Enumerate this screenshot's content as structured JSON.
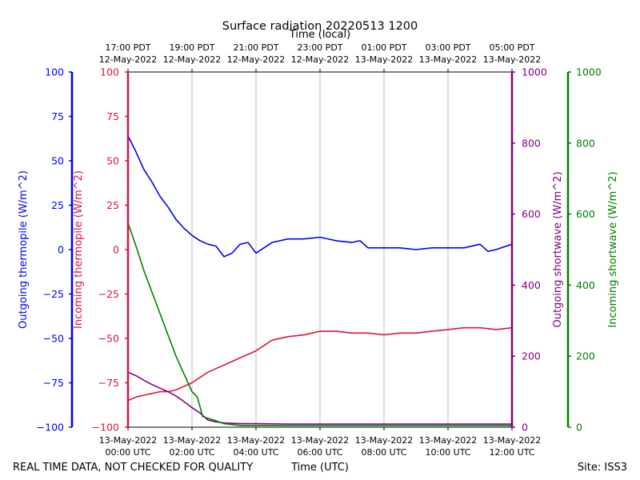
{
  "chart_data": {
    "type": "line",
    "title": "Surface radiation 20220513 1200",
    "top_axis_label": "Time (local)",
    "top_ticks": [
      {
        "line1": "17:00 PDT",
        "line2": "12-May-2022"
      },
      {
        "line1": "19:00 PDT",
        "line2": "12-May-2022"
      },
      {
        "line1": "21:00 PDT",
        "line2": "12-May-2022"
      },
      {
        "line1": "23:00 PDT",
        "line2": "12-May-2022"
      },
      {
        "line1": "01:00 PDT",
        "line2": "13-May-2022"
      },
      {
        "line1": "03:00 PDT",
        "line2": "13-May-2022"
      },
      {
        "line1": "05:00 PDT",
        "line2": "13-May-2022"
      }
    ],
    "xlabel": "Time (UTC)",
    "xlim": [
      "13-May-2022 00:00 UTC",
      "13-May-2022 12:00 UTC"
    ],
    "bottom_ticks": [
      {
        "line1": "13-May-2022",
        "line2": "00:00 UTC"
      },
      {
        "line1": "13-May-2022",
        "line2": "02:00 UTC"
      },
      {
        "line1": "13-May-2022",
        "line2": "04:00 UTC"
      },
      {
        "line1": "13-May-2022",
        "line2": "06:00 UTC"
      },
      {
        "line1": "13-May-2022",
        "line2": "08:00 UTC"
      },
      {
        "line1": "13-May-2022",
        "line2": "10:00 UTC"
      },
      {
        "line1": "13-May-2022",
        "line2": "12:00 UTC"
      }
    ],
    "grid": "vertical",
    "axes": {
      "outgoing_thermopile": {
        "label": "Outgoing thermopile (W/m^2)",
        "color": "#0000ff",
        "ylim": [
          -100,
          100
        ],
        "ticks": [
          "100",
          "75",
          "50",
          "25",
          "0",
          "−25",
          "−50",
          "−75",
          "−100"
        ]
      },
      "incoming_thermopile": {
        "label": "Incoming thermopile (W/m^2)",
        "color": "#dc143c",
        "ylim": [
          -100,
          100
        ],
        "ticks": [
          "100",
          "75",
          "50",
          "25",
          "0",
          "−25",
          "−50",
          "−75",
          "−100"
        ]
      },
      "outgoing_shortwave": {
        "label": "Outgoing shortwave (W/m^2)",
        "color": "#800080",
        "ylim": [
          0,
          1000
        ],
        "ticks": [
          "1000",
          "800",
          "600",
          "400",
          "200",
          "0"
        ]
      },
      "incoming_shortwave": {
        "label": "Incoming shortwave (W/m^2)",
        "color": "#008000",
        "ylim": [
          0,
          1000
        ],
        "ticks": [
          "1000",
          "800",
          "600",
          "400",
          "200",
          "0"
        ]
      }
    },
    "series": [
      {
        "name": "Outgoing thermopile",
        "axis": "outgoing_thermopile",
        "color": "#0000ff",
        "x": [
          "00:00",
          "00:15",
          "00:30",
          "00:45",
          "01:00",
          "01:15",
          "01:30",
          "01:45",
          "02:00",
          "02:15",
          "02:30",
          "02:45",
          "03:00",
          "03:15",
          "03:30",
          "03:45",
          "04:00",
          "04:15",
          "04:30",
          "05:00",
          "05:30",
          "06:00",
          "06:30",
          "07:00",
          "07:15",
          "07:30",
          "08:00",
          "08:30",
          "09:00",
          "09:30",
          "10:00",
          "10:30",
          "11:00",
          "11:15",
          "11:30",
          "12:00"
        ],
        "y": [
          64,
          55,
          45,
          38,
          30,
          24,
          17,
          12,
          8,
          5,
          3,
          2,
          -4,
          -2,
          3,
          4,
          -2,
          1,
          4,
          6,
          6,
          7,
          5,
          4,
          5,
          1,
          1,
          1,
          0,
          1,
          1,
          1,
          3,
          -1,
          0,
          3
        ]
      },
      {
        "name": "Incoming thermopile",
        "axis": "incoming_thermopile",
        "color": "#dc143c",
        "x": [
          "00:00",
          "00:15",
          "00:30",
          "00:45",
          "01:00",
          "01:15",
          "01:30",
          "01:45",
          "02:00",
          "02:15",
          "02:30",
          "02:45",
          "03:00",
          "03:15",
          "03:30",
          "03:45",
          "04:00",
          "04:15",
          "04:30",
          "05:00",
          "05:30",
          "06:00",
          "06:30",
          "07:00",
          "07:30",
          "08:00",
          "08:30",
          "09:00",
          "09:30",
          "10:00",
          "10:30",
          "11:00",
          "11:30",
          "12:00"
        ],
        "y": [
          -85,
          -83,
          -82,
          -81,
          -80,
          -80,
          -79,
          -77,
          -75,
          -72,
          -69,
          -67,
          -65,
          -63,
          -61,
          -59,
          -57,
          -54,
          -51,
          -49,
          -48,
          -46,
          -46,
          -47,
          -47,
          -48,
          -47,
          -47,
          -46,
          -45,
          -44,
          -44,
          -45,
          -44
        ]
      },
      {
        "name": "Outgoing shortwave",
        "axis": "outgoing_shortwave",
        "color": "#800080",
        "x": [
          "00:00",
          "00:15",
          "00:30",
          "00:45",
          "01:00",
          "01:15",
          "01:30",
          "01:45",
          "02:00",
          "02:15",
          "02:30",
          "02:45",
          "03:00",
          "03:30",
          "04:00",
          "05:00",
          "06:00",
          "07:00",
          "08:00",
          "09:00",
          "10:00",
          "11:00",
          "12:00"
        ],
        "y": [
          155,
          145,
          132,
          120,
          110,
          100,
          88,
          72,
          55,
          40,
          20,
          15,
          12,
          10,
          10,
          9,
          9,
          9,
          9,
          9,
          9,
          9,
          9
        ]
      },
      {
        "name": "Incoming shortwave",
        "axis": "incoming_shortwave",
        "color": "#008000",
        "x": [
          "00:00",
          "00:15",
          "00:30",
          "00:45",
          "01:00",
          "01:15",
          "01:30",
          "01:45",
          "02:00",
          "02:10",
          "02:20",
          "02:30",
          "02:45",
          "03:00",
          "03:30",
          "04:00",
          "05:00",
          "06:00",
          "07:00",
          "08:00",
          "09:00",
          "10:00",
          "11:00",
          "12:00"
        ],
        "y": [
          575,
          510,
          440,
          380,
          320,
          260,
          200,
          150,
          100,
          85,
          30,
          25,
          18,
          10,
          5,
          5,
          5,
          5,
          5,
          5,
          5,
          5,
          5,
          5
        ]
      }
    ]
  },
  "footer": {
    "left_note": "REAL TIME DATA, NOT CHECKED FOR QUALITY",
    "site": "Site: ISS3"
  }
}
